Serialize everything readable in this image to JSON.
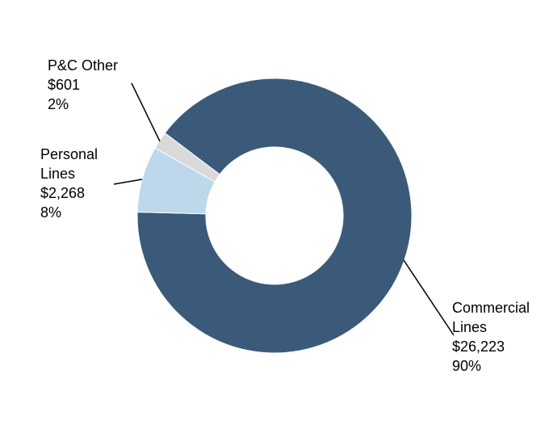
{
  "chart_data": {
    "type": "donut",
    "categories": [
      "Commercial Lines",
      "Personal Lines",
      "P&C Other"
    ],
    "values": [
      26223,
      2268,
      601
    ],
    "value_labels": [
      "$26,223",
      "$2,268",
      "$601"
    ],
    "share_labels": [
      "90%",
      "8%",
      "2%"
    ],
    "colors": [
      "#3b5a79",
      "#bdd8eb",
      "#d9d9d9"
    ]
  }
}
